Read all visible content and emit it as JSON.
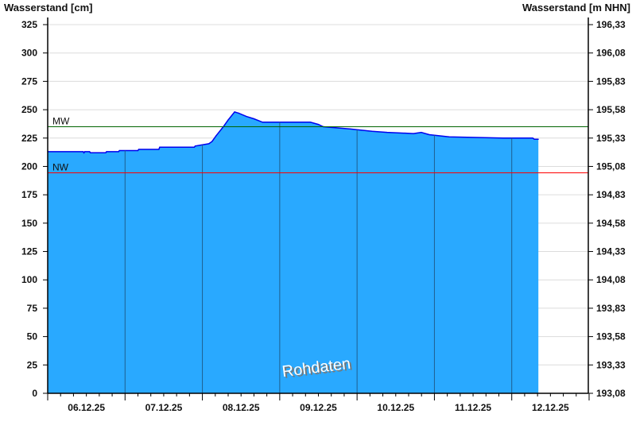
{
  "chart_data": {
    "type": "area",
    "ylabel_left": "Wasserstand [cm]",
    "ylabel_right": "Wasserstand [m NHN]",
    "ylim": [
      0,
      325
    ],
    "yticks_left": [
      "0",
      "25",
      "50",
      "75",
      "100",
      "125",
      "150",
      "175",
      "200",
      "225",
      "250",
      "275",
      "300",
      "325"
    ],
    "yticks_right": [
      "193,08",
      "193,33",
      "193,58",
      "193,83",
      "194,08",
      "194,33",
      "194,58",
      "194,83",
      "195,08",
      "195,33",
      "195,58",
      "195,83",
      "196,08",
      "196,33"
    ],
    "xlim": [
      "2025-12-06T00:00",
      "2025-12-13T00:00"
    ],
    "xtick_labels": [
      "06.12.25",
      "07.12.25",
      "08.12.25",
      "09.12.25",
      "10.12.25",
      "11.12.25",
      "12.12.25"
    ],
    "grid": true,
    "watermark": "Rohdaten",
    "reference_lines": [
      {
        "label": "MW",
        "value": 235,
        "color": "#006400"
      },
      {
        "label": "NW",
        "value": 195,
        "color": "#ff0000"
      }
    ],
    "colors": {
      "fill": "#29a9ff",
      "line": "#0000ee",
      "day_separator": "#1f5f8f",
      "grid": "#dcdcdc"
    },
    "series": [
      {
        "points": [
          [
            "2025-12-06T00:00",
            213
          ],
          [
            "2025-12-06T11:00",
            213
          ],
          [
            "2025-12-06T11:15",
            212
          ],
          [
            "2025-12-06T11:30",
            213
          ],
          [
            "2025-12-06T13:00",
            213
          ],
          [
            "2025-12-06T13:15",
            212
          ],
          [
            "2025-12-06T18:00",
            212
          ],
          [
            "2025-12-06T18:15",
            213
          ],
          [
            "2025-12-06T22:00",
            213
          ],
          [
            "2025-12-06T22:15",
            214
          ],
          [
            "2025-12-07T04:00",
            214
          ],
          [
            "2025-12-07T04:15",
            215
          ],
          [
            "2025-12-07T10:30",
            215
          ],
          [
            "2025-12-07T10:45",
            217
          ],
          [
            "2025-12-07T21:30",
            217
          ],
          [
            "2025-12-07T21:45",
            218
          ],
          [
            "2025-12-08T00:00",
            219
          ],
          [
            "2025-12-08T02:00",
            220
          ],
          [
            "2025-12-08T03:00",
            222
          ],
          [
            "2025-12-08T04:15",
            227
          ],
          [
            "2025-12-08T06:30",
            235
          ],
          [
            "2025-12-08T08:00",
            241
          ],
          [
            "2025-12-08T10:00",
            248
          ],
          [
            "2025-12-08T11:15",
            247
          ],
          [
            "2025-12-08T13:40",
            244
          ],
          [
            "2025-12-08T16:00",
            242
          ],
          [
            "2025-12-08T18:40",
            239
          ],
          [
            "2025-12-09T09:30",
            239
          ],
          [
            "2025-12-09T12:00",
            237
          ],
          [
            "2025-12-09T13:30",
            235
          ],
          [
            "2025-12-09T21:45",
            233
          ],
          [
            "2025-12-10T04:40",
            231
          ],
          [
            "2025-12-10T09:20",
            230
          ],
          [
            "2025-12-10T17:30",
            229
          ],
          [
            "2025-12-10T19:55",
            230
          ],
          [
            "2025-12-10T22:25",
            228
          ],
          [
            "2025-12-11T04:35",
            226
          ],
          [
            "2025-12-11T21:20",
            225
          ],
          [
            "2025-12-12T06:30",
            225
          ],
          [
            "2025-12-12T07:00",
            224
          ],
          [
            "2025-12-12T08:15",
            224
          ]
        ]
      }
    ]
  }
}
